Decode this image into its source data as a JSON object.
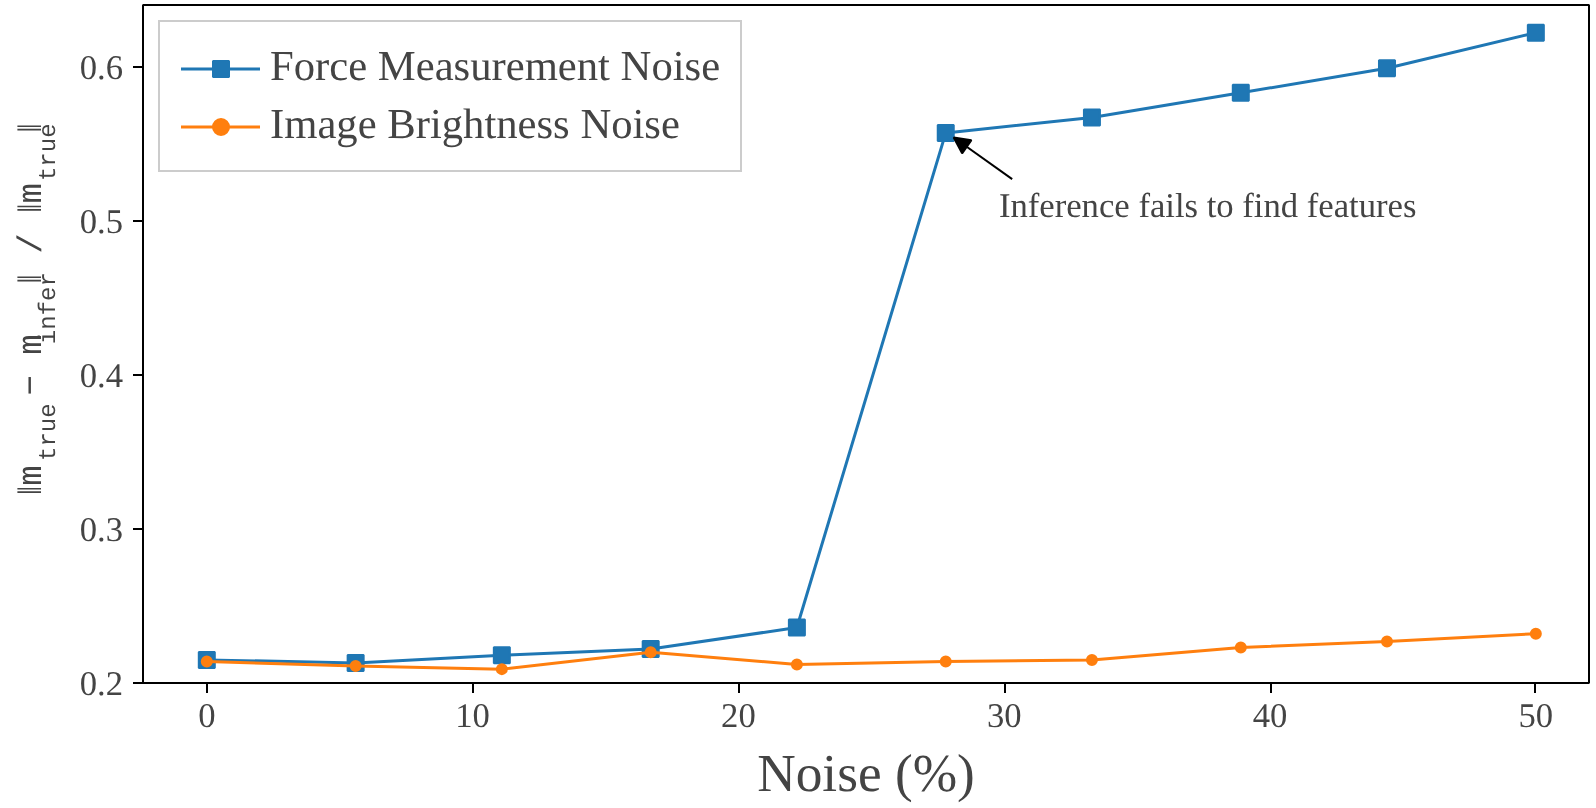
{
  "chart_data": {
    "type": "line",
    "xlabel": "Noise (%)",
    "ylabel": "‖m$_{true}$ − m$_{infer}$‖ / ‖m$_{true}$‖",
    "x": [
      0,
      5.6,
      11.1,
      16.7,
      22.2,
      27.8,
      33.3,
      38.9,
      44.4,
      50
    ],
    "series": [
      {
        "name": "Force Measurement Noise",
        "color": "#1f77b4",
        "marker": "square",
        "values": [
          0.215,
          0.213,
          0.218,
          0.222,
          0.236,
          0.557,
          0.567,
          0.583,
          0.599,
          0.622
        ]
      },
      {
        "name": "Image Brightness Noise",
        "color": "#ff7f0e",
        "marker": "circle",
        "values": [
          0.214,
          0.211,
          0.209,
          0.22,
          0.212,
          0.214,
          0.215,
          0.223,
          0.227,
          0.232
        ]
      }
    ],
    "xlim": [
      -2.4,
      52
    ],
    "ylim": [
      0.2,
      0.64
    ],
    "xticks": [
      0,
      10,
      20,
      30,
      40,
      50
    ],
    "yticks": [
      0.2,
      0.3,
      0.4,
      0.5,
      0.6
    ],
    "annotations": [
      {
        "text": "Inference fails to find features",
        "x": 27.8,
        "y": 0.557
      }
    ],
    "legend": "top left",
    "grid": false
  }
}
